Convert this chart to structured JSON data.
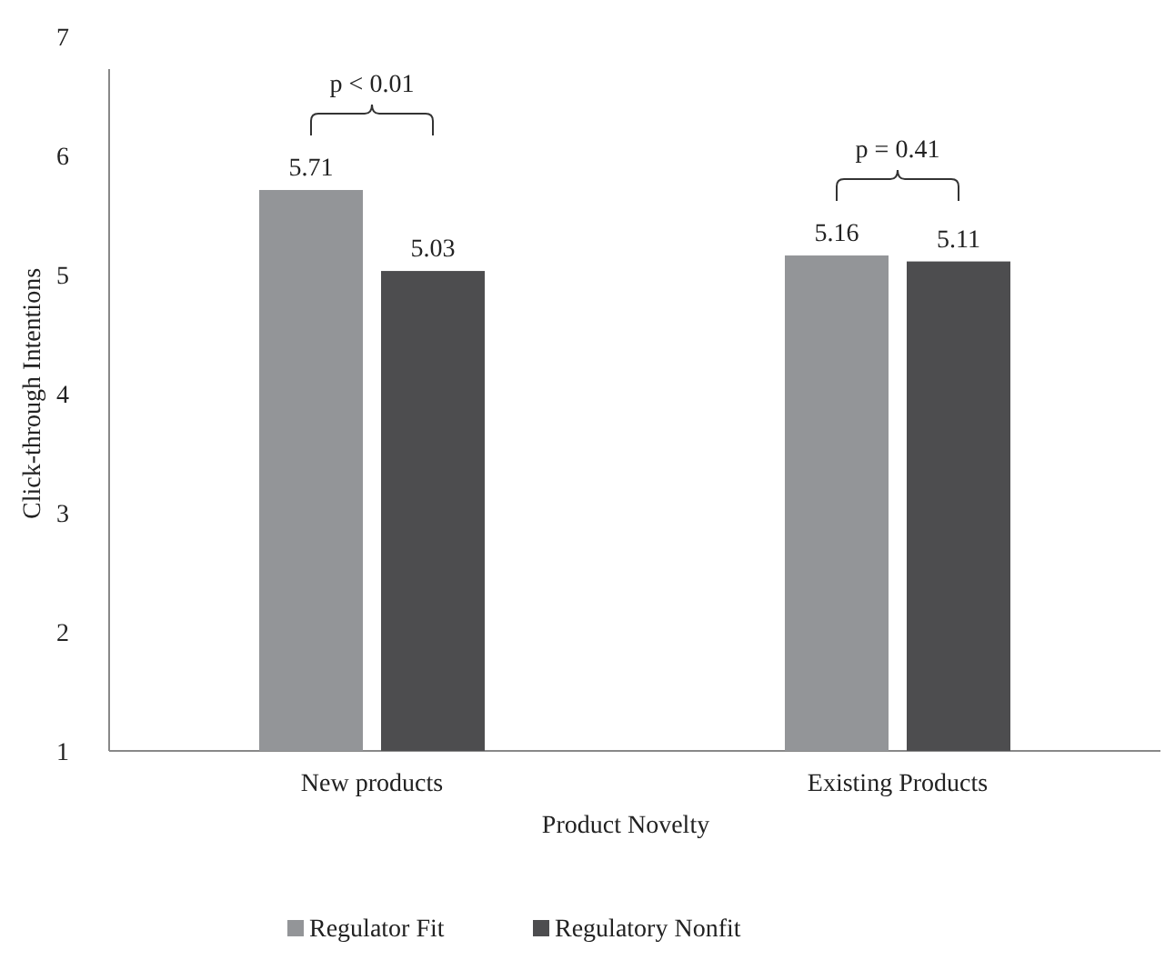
{
  "chart_data": {
    "type": "bar",
    "xlabel": "Product Novelty",
    "ylabel": "Click-through Intentions",
    "categories": [
      "New products",
      "Existing Products"
    ],
    "series": [
      {
        "name": "Regulator Fit",
        "color": "#939598",
        "values": [
          5.71,
          5.16
        ]
      },
      {
        "name": "Regulatory Nonfit",
        "color": "#4d4d4f",
        "values": [
          5.03,
          5.11
        ]
      }
    ],
    "ylim": [
      1,
      7
    ],
    "yticks": [
      1,
      2,
      3,
      4,
      5,
      6,
      7
    ],
    "grid": false,
    "legend": "bottom",
    "data_labels": true,
    "annotations": [
      "p < 0.01",
      "p = 0.41"
    ]
  }
}
